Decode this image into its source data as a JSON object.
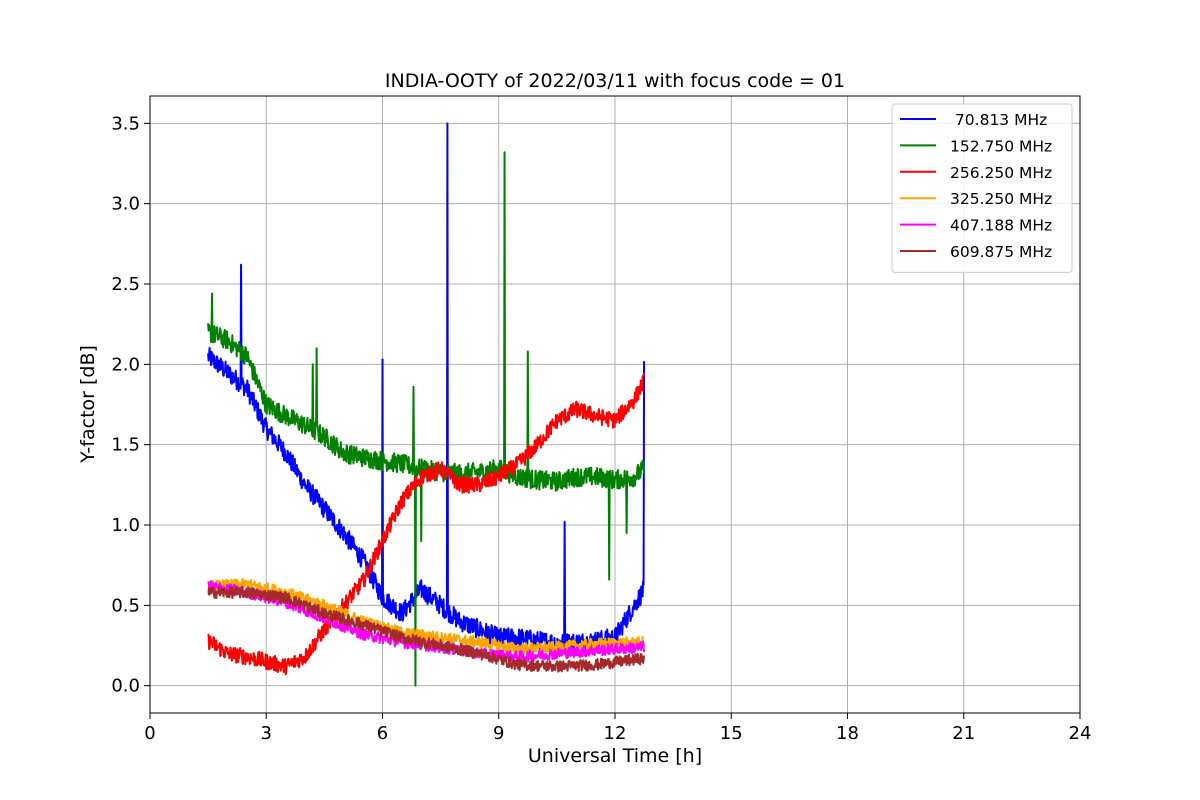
{
  "chart_data": {
    "type": "line",
    "title": "INDIA-OOTY of 2022/03/11 with focus code = 01",
    "xlabel": "Universal Time [h]",
    "ylabel": "Y-factor [dB]",
    "xlim": [
      0,
      24
    ],
    "ylim": [
      -0.17,
      3.67
    ],
    "xticks": [
      0,
      3,
      6,
      9,
      12,
      15,
      18,
      21,
      24
    ],
    "yticks": [
      0.0,
      0.5,
      1.0,
      1.5,
      2.0,
      2.5,
      3.0,
      3.5
    ],
    "xtick_labels": [
      "0",
      "3",
      "6",
      "9",
      "12",
      "15",
      "18",
      "21",
      "24"
    ],
    "ytick_labels": [
      "0.0",
      "0.5",
      "1.0",
      "1.5",
      "2.0",
      "2.5",
      "3.0",
      "3.5"
    ],
    "grid": true,
    "legend_position": "top-right",
    "series": [
      {
        "name": "70.813 MHz",
        "color": "#0000ff",
        "noise": 0.06,
        "x": [
          1.5,
          2.0,
          2.5,
          3.0,
          3.5,
          4.0,
          4.5,
          5.0,
          5.5,
          6.0,
          6.5,
          7.0,
          7.5,
          8.0,
          8.5,
          9.0,
          9.5,
          10.0,
          10.5,
          11.0,
          11.5,
          12.0,
          12.5,
          12.75
        ],
        "values": [
          2.05,
          1.95,
          1.85,
          1.6,
          1.45,
          1.25,
          1.1,
          0.95,
          0.78,
          0.55,
          0.45,
          0.6,
          0.5,
          0.4,
          0.35,
          0.3,
          0.3,
          0.28,
          0.27,
          0.27,
          0.28,
          0.3,
          0.5,
          0.6
        ],
        "spikes": [
          [
            2.35,
            2.62
          ],
          [
            6.0,
            2.03
          ],
          [
            7.68,
            3.5
          ],
          [
            10.7,
            1.02
          ],
          [
            12.75,
            2.02
          ]
        ]
      },
      {
        "name": "152.750 MHz",
        "color": "#008000",
        "noise": 0.06,
        "x": [
          1.5,
          2.0,
          2.5,
          3.0,
          3.5,
          4.0,
          4.5,
          5.0,
          5.5,
          6.0,
          6.5,
          7.0,
          7.5,
          8.0,
          8.5,
          9.0,
          9.5,
          10.0,
          10.5,
          11.0,
          11.5,
          12.0,
          12.5,
          12.75
        ],
        "values": [
          2.2,
          2.15,
          2.05,
          1.75,
          1.68,
          1.62,
          1.55,
          1.45,
          1.42,
          1.4,
          1.38,
          1.35,
          1.33,
          1.32,
          1.33,
          1.35,
          1.3,
          1.28,
          1.27,
          1.3,
          1.3,
          1.28,
          1.3,
          1.35
        ],
        "spikes": [
          [
            1.6,
            2.44
          ],
          [
            4.3,
            2.1
          ],
          [
            4.2,
            2.0
          ],
          [
            6.8,
            1.86
          ],
          [
            6.85,
            0.0
          ],
          [
            7.0,
            0.9
          ],
          [
            9.15,
            3.32
          ],
          [
            9.75,
            2.08
          ],
          [
            11.85,
            0.66
          ],
          [
            12.3,
            0.95
          ]
        ]
      },
      {
        "name": "256.250 MHz",
        "color": "#ff0000",
        "noise": 0.05,
        "x": [
          1.5,
          2.0,
          2.5,
          3.0,
          3.5,
          4.0,
          4.5,
          5.0,
          5.5,
          6.0,
          6.5,
          7.0,
          7.5,
          8.0,
          8.5,
          9.0,
          9.5,
          10.0,
          10.5,
          11.0,
          11.5,
          12.0,
          12.5,
          12.75
        ],
        "values": [
          0.28,
          0.2,
          0.18,
          0.15,
          0.12,
          0.18,
          0.35,
          0.5,
          0.65,
          0.9,
          1.15,
          1.3,
          1.35,
          1.25,
          1.25,
          1.3,
          1.38,
          1.5,
          1.65,
          1.72,
          1.68,
          1.65,
          1.78,
          1.9
        ],
        "spikes": []
      },
      {
        "name": "325.250 MHz",
        "color": "#ffa500",
        "noise": 0.035,
        "x": [
          1.5,
          2.5,
          3.5,
          4.5,
          5.5,
          6.5,
          7.5,
          8.5,
          9.5,
          10.5,
          11.5,
          12.75
        ],
        "values": [
          0.62,
          0.63,
          0.58,
          0.5,
          0.4,
          0.33,
          0.3,
          0.27,
          0.23,
          0.24,
          0.26,
          0.27
        ],
        "spikes": []
      },
      {
        "name": "407.188 MHz",
        "color": "#ff00ff",
        "noise": 0.035,
        "x": [
          1.5,
          2.5,
          3.5,
          4.5,
          5.5,
          6.5,
          7.5,
          8.5,
          9.5,
          10.5,
          11.5,
          12.75
        ],
        "values": [
          0.62,
          0.58,
          0.52,
          0.42,
          0.32,
          0.27,
          0.24,
          0.2,
          0.18,
          0.2,
          0.22,
          0.24
        ],
        "spikes": []
      },
      {
        "name": "609.875 MHz",
        "color": "#a52a2a",
        "noise": 0.035,
        "x": [
          1.5,
          2.5,
          3.5,
          4.5,
          5.5,
          6.5,
          7.5,
          8.5,
          9.5,
          10.5,
          11.5,
          12.75
        ],
        "values": [
          0.58,
          0.58,
          0.55,
          0.45,
          0.38,
          0.3,
          0.25,
          0.2,
          0.13,
          0.12,
          0.13,
          0.17
        ],
        "spikes": []
      }
    ]
  }
}
